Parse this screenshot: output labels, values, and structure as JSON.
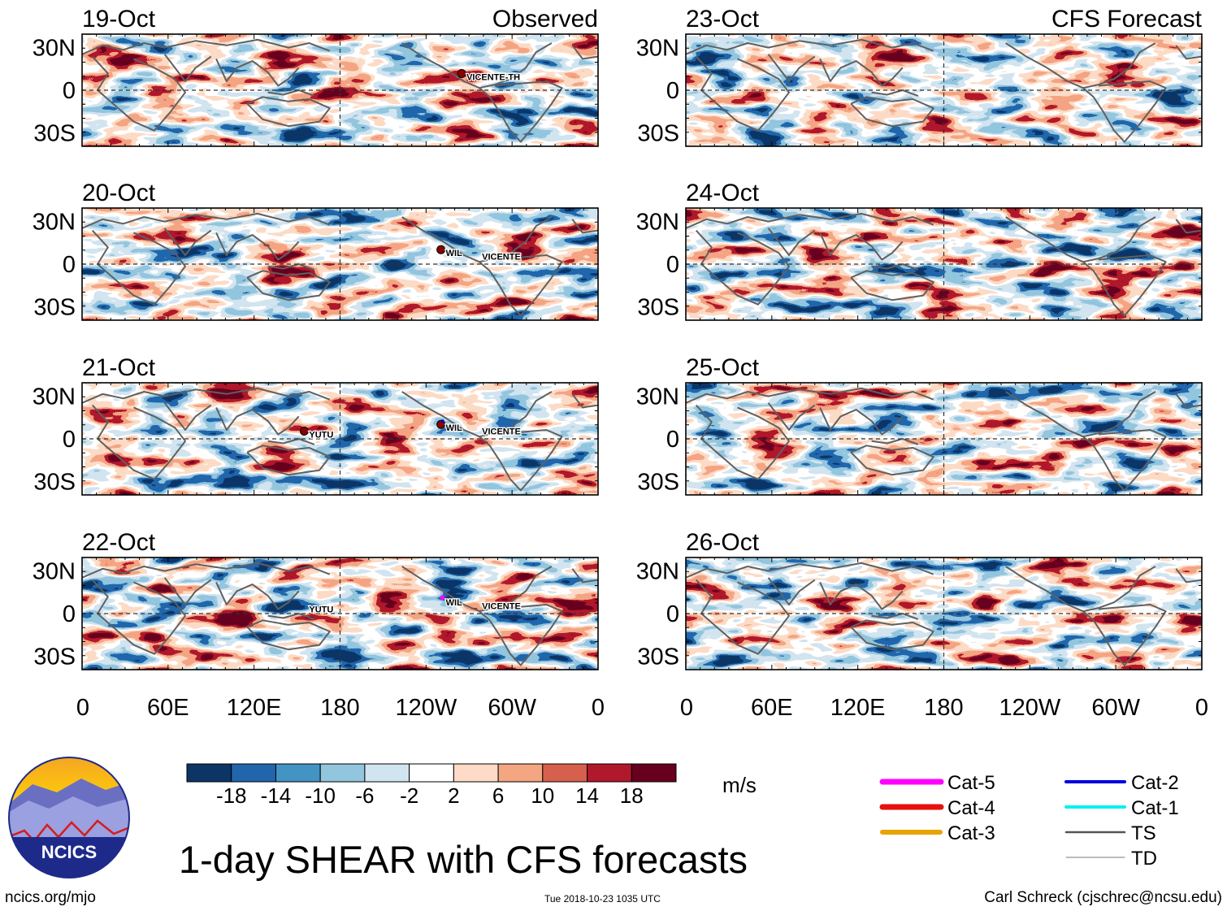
{
  "title": "1-day SHEAR with CFS forecasts",
  "footer": {
    "site": "ncics.org/mjo",
    "timestamp": "Tue 2018-10-23 1035 UTC",
    "author": "Carl Schreck (cjschrec@ncsu.edu)"
  },
  "logo": {
    "text": "NCICS"
  },
  "chart_data": {
    "type": "heatmap",
    "variable": "1-day vertical wind shear anomaly",
    "units": "m/s",
    "x_ticks": [
      "0",
      "60E",
      "120E",
      "180",
      "120W",
      "60W",
      "0"
    ],
    "y_ticks": [
      "30N",
      "0",
      "30S"
    ],
    "colorbar": {
      "tick_labels": [
        "-18",
        "-14",
        "-10",
        "-6",
        "-2",
        "2",
        "6",
        "10",
        "14",
        "18"
      ],
      "colors": [
        "#0c3566",
        "#2166ac",
        "#4393c3",
        "#92c5de",
        "#d1e5f0",
        "#ffffff",
        "#fddbc7",
        "#f4a582",
        "#d6604d",
        "#b2182b",
        "#67001f"
      ],
      "units_label": "m/s"
    },
    "columns": [
      {
        "header": "Observed",
        "panels": [
          "19-Oct",
          "20-Oct",
          "21-Oct",
          "22-Oct"
        ]
      },
      {
        "header": "CFS Forecast",
        "panels": [
          "23-Oct",
          "24-Oct",
          "25-Oct",
          "26-Oct"
        ]
      }
    ],
    "storm_labels": {
      "19-Oct": [
        "VICENTE-TH"
      ],
      "20-Oct": [
        "WIL",
        "VICENTE"
      ],
      "21-Oct": [
        "YUTU",
        "WIL",
        "VICENTE"
      ],
      "22-Oct": [
        "YUTU",
        "WIL",
        "VICENTE"
      ]
    },
    "track_legend": {
      "items": [
        {
          "label": "Cat-5",
          "color": "#ff00ff"
        },
        {
          "label": "Cat-4",
          "color": "#e8100c"
        },
        {
          "label": "Cat-3",
          "color": "#e8a400"
        },
        {
          "label": "Cat-2",
          "color": "#0000e0"
        },
        {
          "label": "Cat-1",
          "color": "#00f0f0"
        },
        {
          "label": "TS",
          "color": "#555555"
        },
        {
          "label": "TD",
          "color": "#777777"
        }
      ]
    }
  }
}
